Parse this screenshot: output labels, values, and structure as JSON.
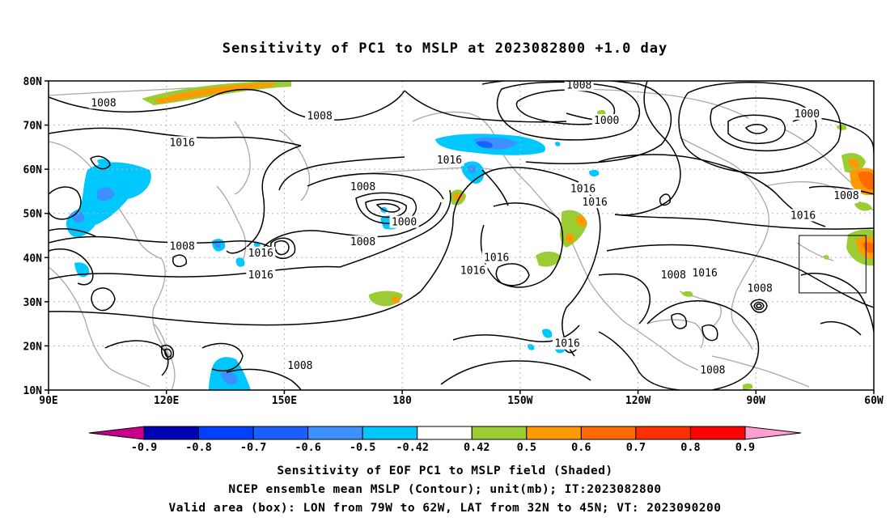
{
  "title": "Sensitivity of PC1 to MSLP at 2023082800 +1.0 day",
  "captions": {
    "line1": "Sensitivity of EOF PC1 to MSLP field (Shaded)",
    "line2": "NCEP ensemble mean MSLP (Contour); unit(mb); IT:2023082800",
    "line3": "Valid area (box): LON from 79W to 62W, LAT from 32N to 45N; VT: 2023090200"
  },
  "map": {
    "lon_range": [
      90,
      300
    ],
    "lat_range": [
      10,
      80
    ],
    "lat_ticks": [
      {
        "lat": 80,
        "label": "80N"
      },
      {
        "lat": 70,
        "label": "70N"
      },
      {
        "lat": 60,
        "label": "60N"
      },
      {
        "lat": 50,
        "label": "50N"
      },
      {
        "lat": 40,
        "label": "40N"
      },
      {
        "lat": 30,
        "label": "30N"
      },
      {
        "lat": 20,
        "label": "20N"
      },
      {
        "lat": 10,
        "label": "10N"
      }
    ],
    "lon_ticks": [
      {
        "lon": 90,
        "label": "90E"
      },
      {
        "lon": 120,
        "label": "120E"
      },
      {
        "lon": 150,
        "label": "150E"
      },
      {
        "lon": 180,
        "label": "180"
      },
      {
        "lon": 210,
        "label": "150W"
      },
      {
        "lon": 240,
        "label": "120W"
      },
      {
        "lon": 270,
        "label": "90W"
      },
      {
        "lon": 300,
        "label": "60W"
      }
    ],
    "valid_box": {
      "lon": [
        281,
        298
      ],
      "lat": [
        32,
        45
      ]
    },
    "contour_labels": [
      {
        "text": "1008",
        "lon": 104,
        "lat": 75
      },
      {
        "text": "1008",
        "lon": 159,
        "lat": 72
      },
      {
        "text": "1016",
        "lon": 124,
        "lat": 66
      },
      {
        "text": "1008",
        "lon": 124,
        "lat": 42.5
      },
      {
        "text": "1016",
        "lon": 144,
        "lat": 41
      },
      {
        "text": "1016",
        "lon": 144,
        "lat": 36
      },
      {
        "text": "1008",
        "lon": 154,
        "lat": 15.5
      },
      {
        "text": "1008",
        "lon": 170,
        "lat": 56
      },
      {
        "text": "1000",
        "lon": 180.5,
        "lat": 48
      },
      {
        "text": "1008",
        "lon": 170,
        "lat": 43.5
      },
      {
        "text": "1016",
        "lon": 192,
        "lat": 62
      },
      {
        "text": "1008",
        "lon": 225,
        "lat": 79
      },
      {
        "text": "1000",
        "lon": 232,
        "lat": 71
      },
      {
        "text": "1016",
        "lon": 226,
        "lat": 55.5
      },
      {
        "text": "1016",
        "lon": 229,
        "lat": 52.5
      },
      {
        "text": "1016",
        "lon": 204,
        "lat": 40
      },
      {
        "text": "1016",
        "lon": 198,
        "lat": 37
      },
      {
        "text": "1016",
        "lon": 222,
        "lat": 20.5
      },
      {
        "text": "1008",
        "lon": 249,
        "lat": 36
      },
      {
        "text": "1016",
        "lon": 257,
        "lat": 36.5
      },
      {
        "text": "1008",
        "lon": 271,
        "lat": 33
      },
      {
        "text": "1008",
        "lon": 259,
        "lat": 14.5
      },
      {
        "text": "1000",
        "lon": 283,
        "lat": 72.5
      },
      {
        "text": "1008",
        "lon": 293,
        "lat": 54
      },
      {
        "text": "1016",
        "lon": 282,
        "lat": 49.5
      }
    ]
  },
  "colorbar": {
    "labels": [
      "-0.9",
      "-0.8",
      "-0.7",
      "-0.6",
      "-0.5",
      "-0.42",
      "0.42",
      "0.5",
      "0.6",
      "0.7",
      "0.8",
      "0.9"
    ],
    "colors": [
      "#0000b4",
      "#0040ff",
      "#1a60ff",
      "#3c90ff",
      "#00c8ff",
      "#ffffff",
      "#9acd32",
      "#ff9900",
      "#ff6a00",
      "#ff3000",
      "#ff0000"
    ],
    "under_color": "#c8008c",
    "over_color": "#ff9fcf"
  }
}
